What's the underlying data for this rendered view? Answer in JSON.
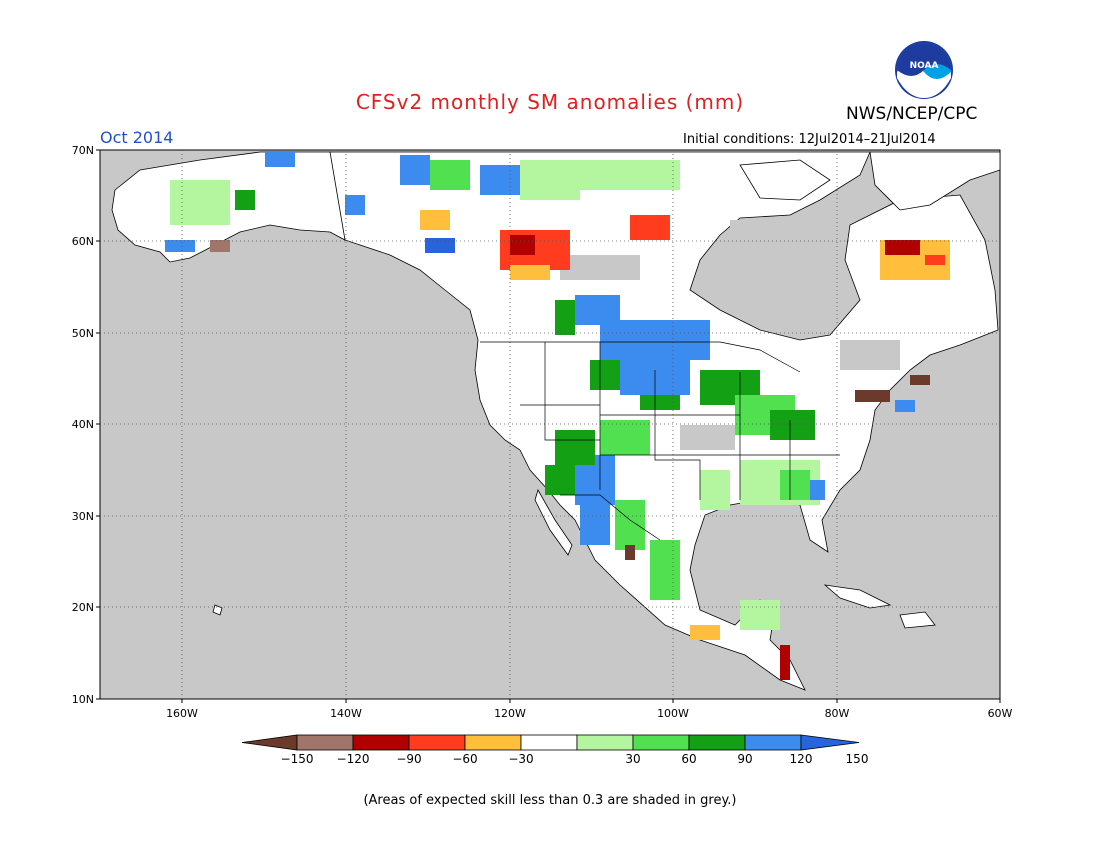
{
  "title": "CFSv2 monthly SM anomalies (mm)",
  "organization": "NWS/NCEP/CPC",
  "logo_text": "NOAA",
  "valid_period": "Oct 2014",
  "initial_conditions": "Initial conditions: 12Jul2014–21Jul2014",
  "footnote": "(Areas of expected skill less than 0.3 are shaded in grey.)",
  "map": {
    "lat_labels": [
      "70N",
      "60N",
      "50N",
      "40N",
      "30N",
      "20N",
      "10N"
    ],
    "lon_labels": [
      "160W",
      "140W",
      "120W",
      "100W",
      "80W",
      "60W"
    ],
    "ocean_color": "#c8c8c8",
    "land_color": "#ffffff"
  },
  "colorbar": {
    "tick_labels": [
      "−150",
      "−120",
      "−90",
      "−60",
      "−30",
      "30",
      "60",
      "90",
      "120",
      "150"
    ],
    "colors": [
      "#6b3a2a",
      "#a0766a",
      "#b00000",
      "#ff3c1e",
      "#ffbe3c",
      "#ffffff",
      "#b4f5a0",
      "#50e050",
      "#14a014",
      "#3c8cf0",
      "#2864dc"
    ]
  },
  "icons": {
    "logo": "noaa-logo"
  }
}
